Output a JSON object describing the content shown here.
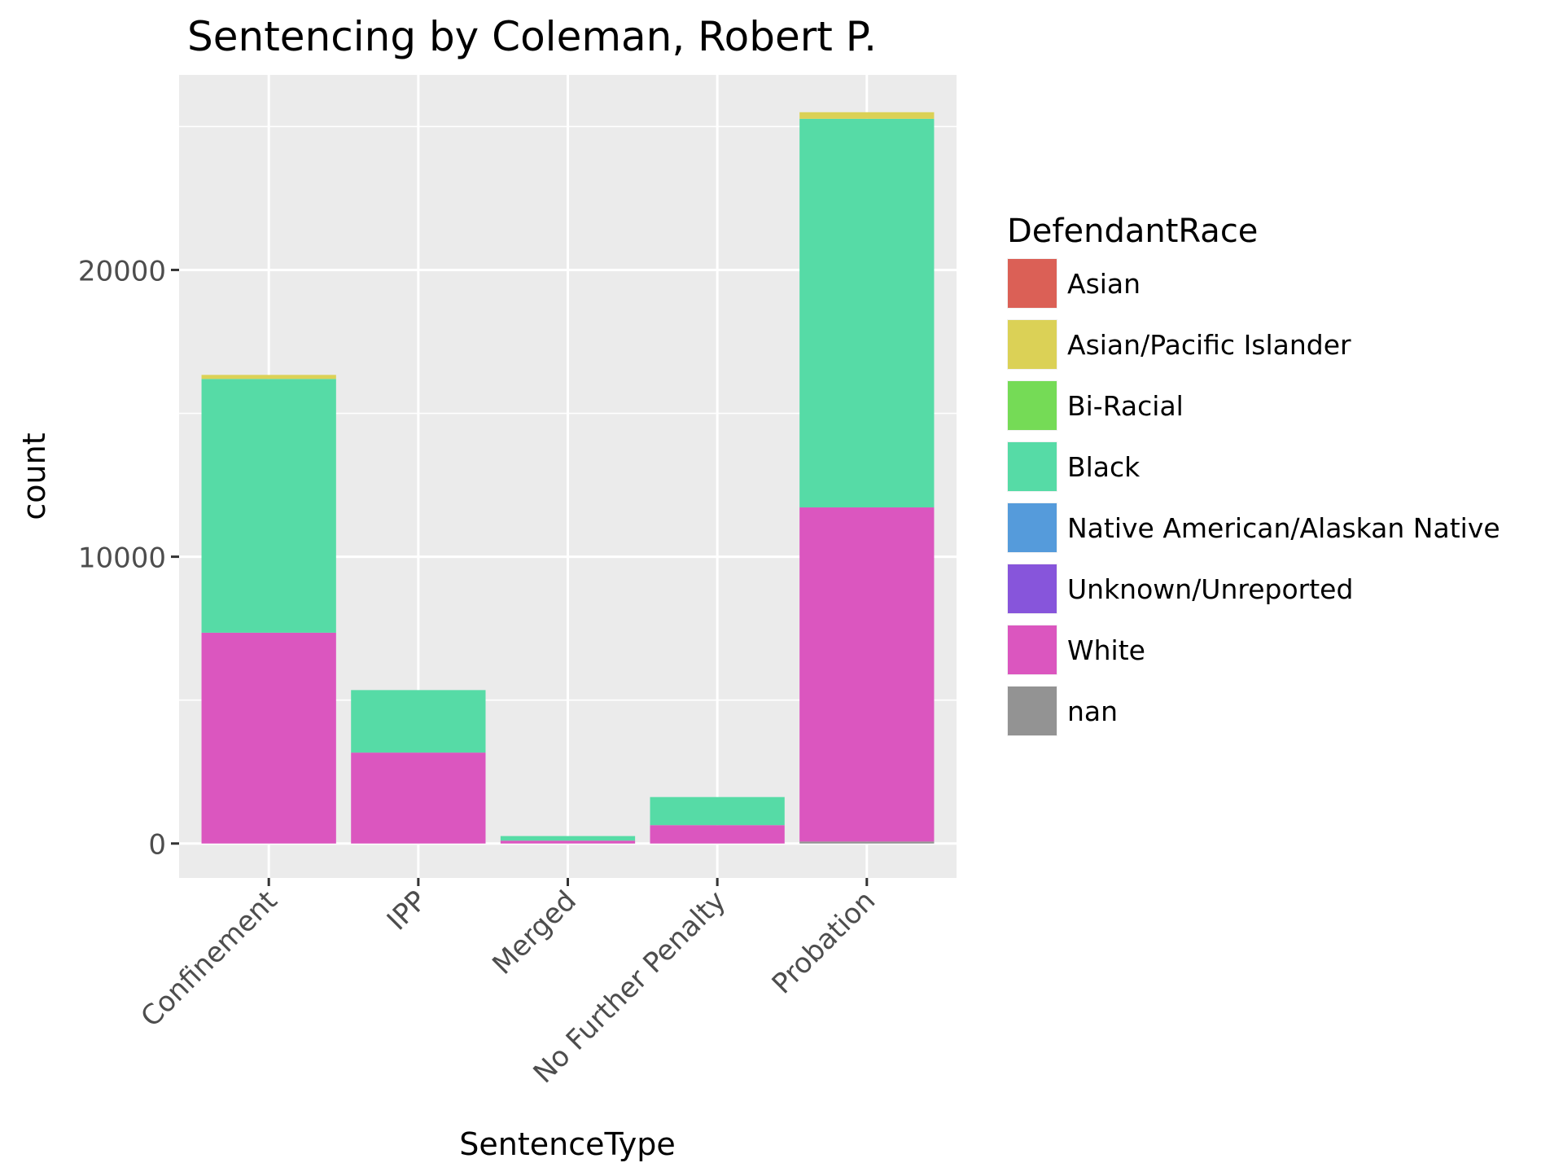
{
  "chart_data": {
    "type": "bar",
    "stacked": true,
    "title": "Sentencing by Coleman, Robert P.",
    "xlabel": "SentenceType",
    "ylabel": "count",
    "categories": [
      "Confinement",
      "IPP",
      "Merged",
      "No Further Penalty",
      "Probation"
    ],
    "y_ticks": [
      0,
      10000,
      20000
    ],
    "y_tick_labels": [
      "0",
      "10000",
      "20000"
    ],
    "ylim": [
      -1200,
      26800
    ],
    "grid": true,
    "legend": {
      "title": "DefendantRace",
      "position": "right"
    },
    "series": [
      {
        "name": "nan",
        "color": "#939393",
        "values": [
          0,
          0,
          0,
          0,
          70
        ]
      },
      {
        "name": "White",
        "color": "#DB56BF",
        "values": [
          7350,
          3170,
          100,
          640,
          11650
        ]
      },
      {
        "name": "Unknown/Unreported",
        "color": "#8755DB",
        "values": [
          0,
          0,
          0,
          0,
          0
        ]
      },
      {
        "name": "Native American/Alaskan Native",
        "color": "#559BDB",
        "values": [
          0,
          0,
          0,
          0,
          0
        ]
      },
      {
        "name": "Black",
        "color": "#56DBA6",
        "values": [
          8850,
          2180,
          160,
          980,
          13550
        ]
      },
      {
        "name": "Bi-Racial",
        "color": "#75DB56",
        "values": [
          0,
          0,
          0,
          0,
          0
        ]
      },
      {
        "name": "Asian/Pacific Islander",
        "color": "#DBD156",
        "values": [
          140,
          0,
          0,
          0,
          230
        ]
      },
      {
        "name": "Asian",
        "color": "#DB6056",
        "values": [
          0,
          0,
          0,
          0,
          0
        ]
      }
    ],
    "legend_order": [
      "Asian",
      "Asian/Pacific Islander",
      "Bi-Racial",
      "Black",
      "Native American/Alaskan Native",
      "Unknown/Unreported",
      "White",
      "nan"
    ]
  }
}
